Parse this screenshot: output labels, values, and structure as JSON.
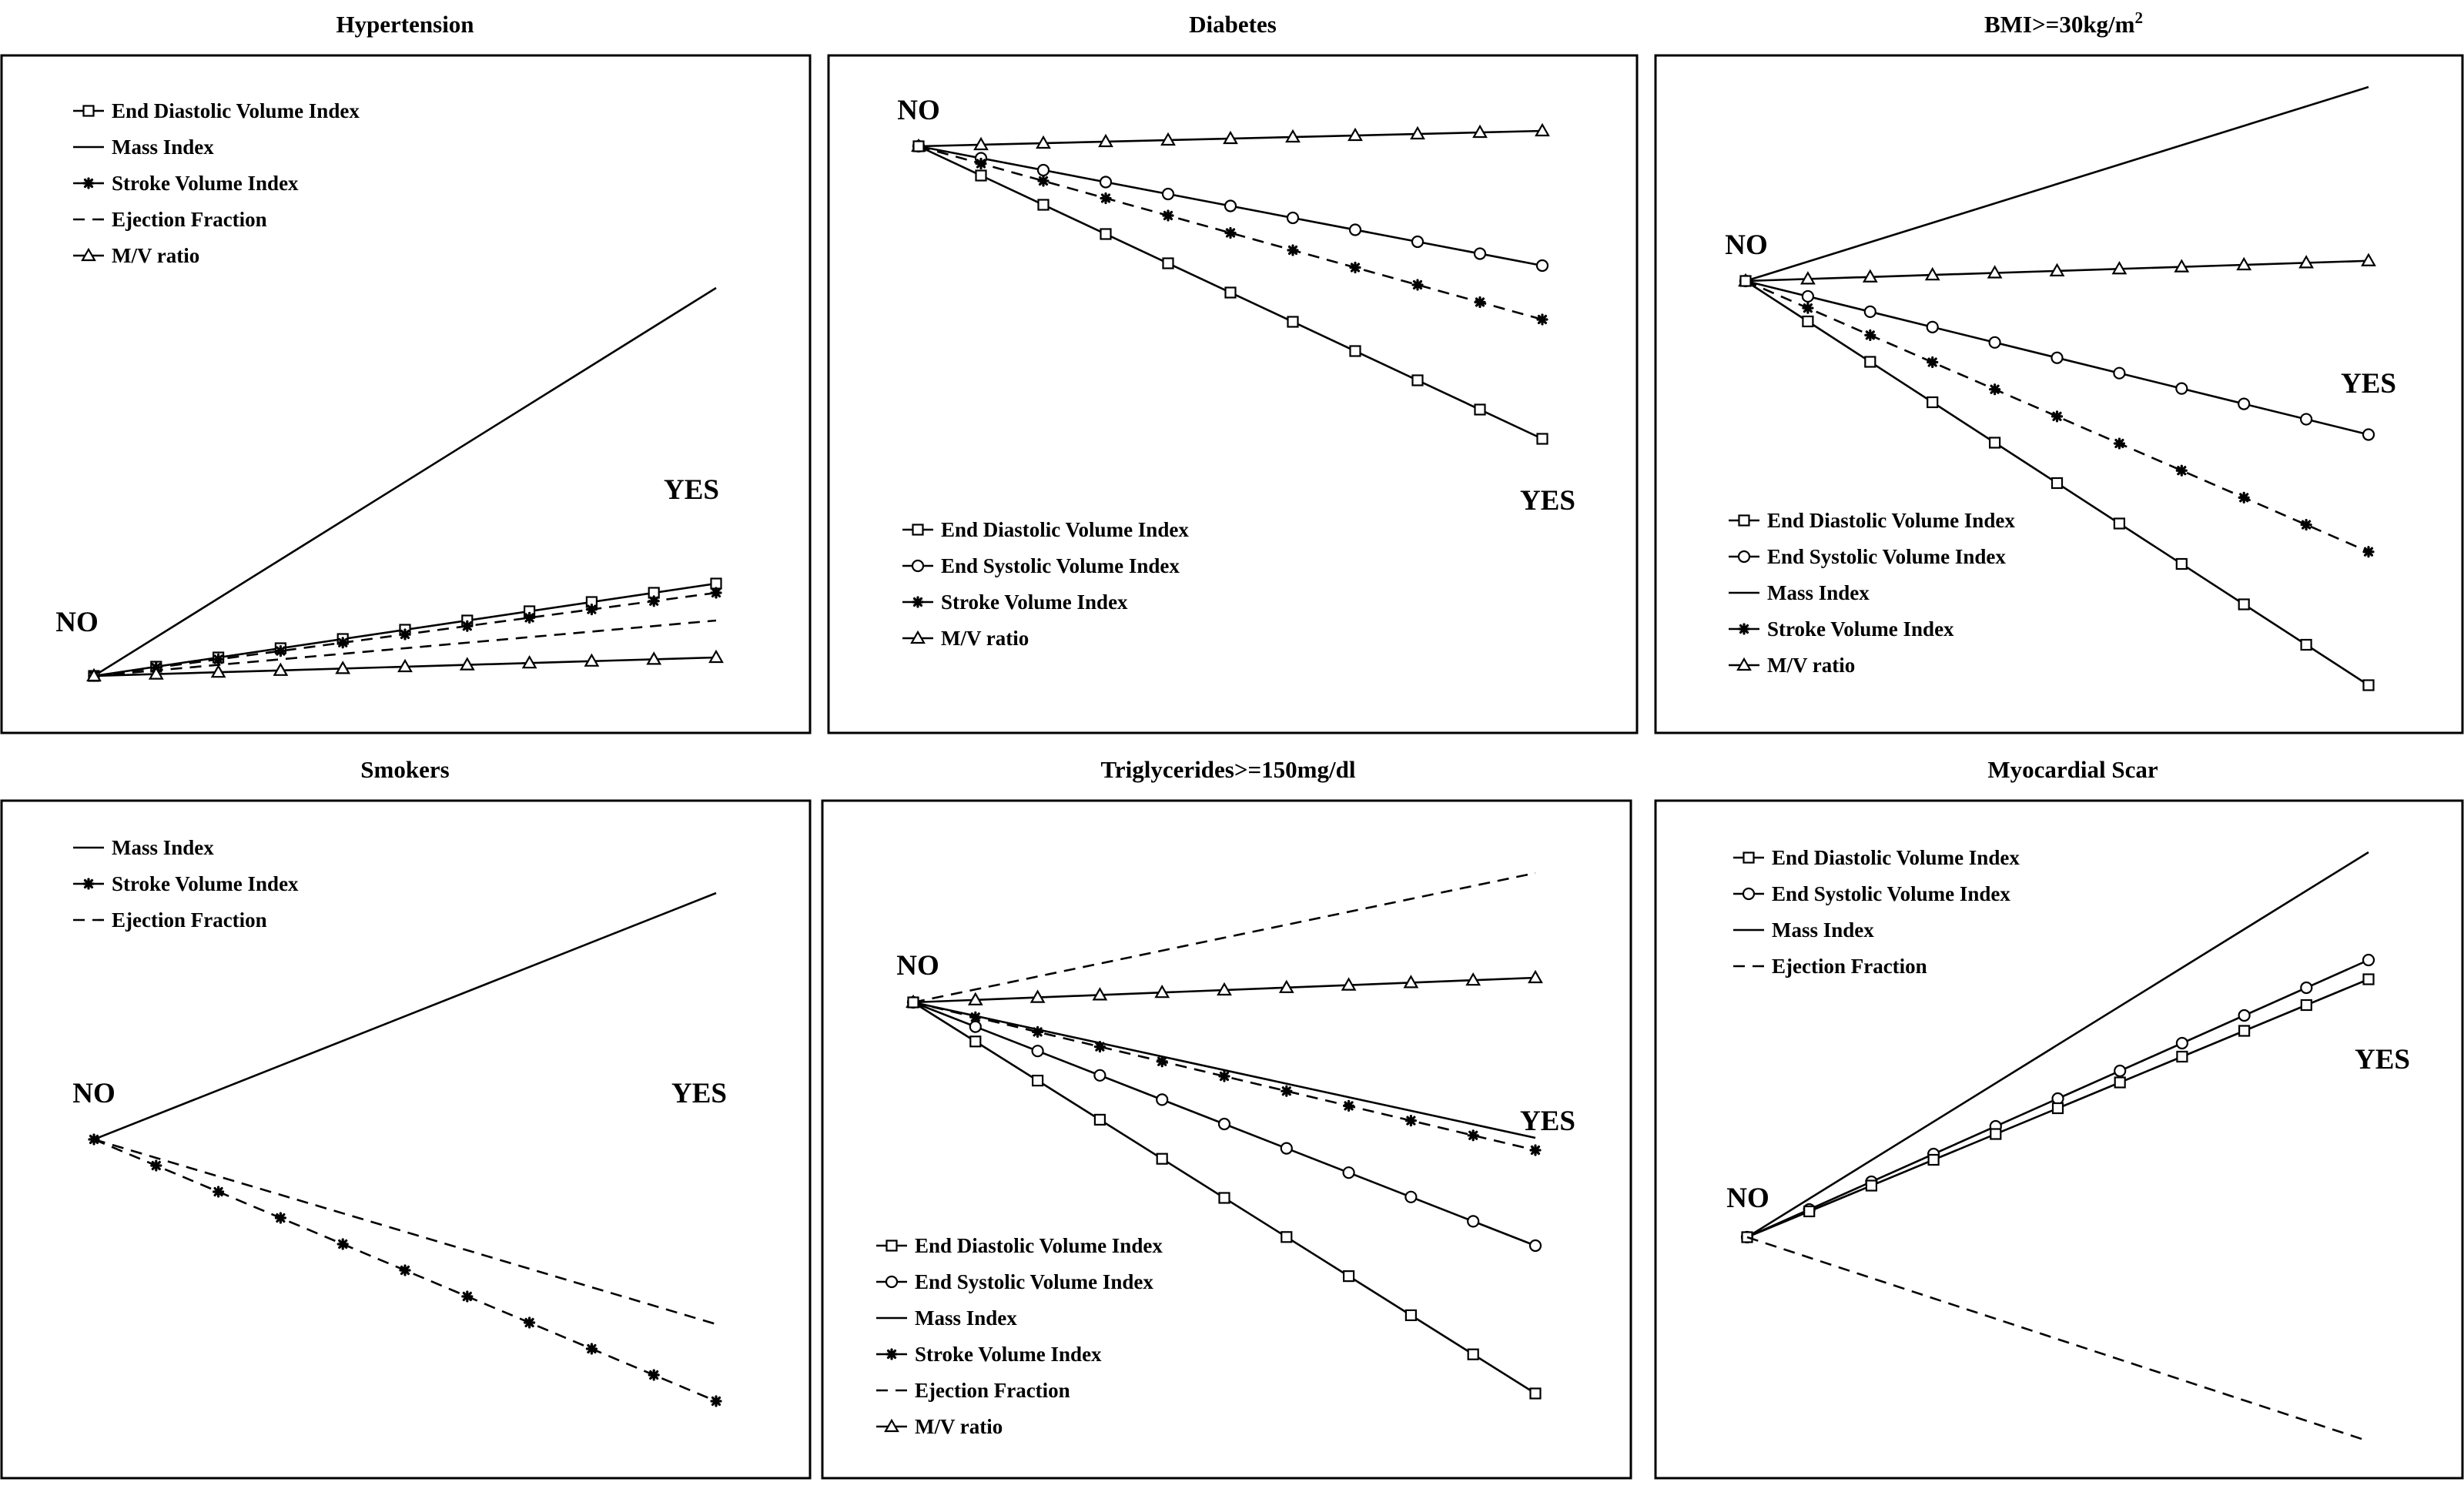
{
  "figure": {
    "start_label": "NO",
    "end_label": "YES",
    "series_styles": {
      "End Diastolic Volume Index": {
        "line": "solid",
        "marker": "square"
      },
      "End Systolic Volume Index": {
        "line": "solid",
        "marker": "circle"
      },
      "Mass Index": {
        "line": "solid",
        "marker": "none"
      },
      "Stroke Volume Index": {
        "line": "dashed",
        "marker": "star"
      },
      "Ejection Fraction": {
        "line": "dashed",
        "marker": "none"
      },
      "M/V ratio": {
        "line": "solid",
        "marker": "triangle"
      }
    }
  },
  "chart_data": [
    {
      "type": "line",
      "title": "Hypertension",
      "categories": [
        "NO",
        "YES"
      ],
      "ylim": [
        -1,
        1
      ],
      "legend": [
        "End Diastolic Volume Index",
        "Mass Index",
        "Stroke Volume Index",
        "Ejection Fraction",
        "M/V ratio"
      ],
      "legend_position": "top-left",
      "series": [
        {
          "name": "Mass Index",
          "values": [
            0,
            0.84
          ]
        },
        {
          "name": "End Diastolic Volume Index",
          "values": [
            0,
            0.2
          ]
        },
        {
          "name": "Stroke Volume Index",
          "values": [
            0,
            0.18
          ]
        },
        {
          "name": "Ejection Fraction",
          "values": [
            0,
            0.12
          ]
        },
        {
          "name": "M/V ratio",
          "values": [
            0,
            0.04
          ]
        }
      ]
    },
    {
      "type": "line",
      "title": "Diabetes",
      "categories": [
        "NO",
        "YES"
      ],
      "ylim": [
        -1,
        1
      ],
      "legend": [
        "End Diastolic Volume Index",
        "End Systolic Volume Index",
        "Stroke Volume Index",
        "M/V ratio"
      ],
      "legend_position": "bottom-left",
      "series": [
        {
          "name": "M/V ratio",
          "values": [
            0,
            0.04
          ]
        },
        {
          "name": "End Systolic Volume Index",
          "values": [
            0,
            -0.31
          ]
        },
        {
          "name": "Stroke Volume Index",
          "values": [
            0,
            -0.45
          ]
        },
        {
          "name": "End Diastolic Volume Index",
          "values": [
            0,
            -0.76
          ]
        }
      ]
    },
    {
      "type": "line",
      "title": "BMI>=30kg/m",
      "title_superscript": "2",
      "categories": [
        "NO",
        "YES"
      ],
      "ylim": [
        -1,
        1
      ],
      "legend": [
        "End Diastolic Volume Index",
        "End Systolic Volume Index",
        "Mass Index",
        "Stroke Volume Index",
        "M/V ratio"
      ],
      "legend_position": "bottom-left",
      "series": [
        {
          "name": "Mass Index",
          "values": [
            0,
            0.48
          ]
        },
        {
          "name": "M/V ratio",
          "values": [
            0,
            0.05
          ]
        },
        {
          "name": "End Systolic Volume Index",
          "values": [
            0,
            -0.38
          ]
        },
        {
          "name": "Stroke Volume Index",
          "values": [
            0,
            -0.67
          ]
        },
        {
          "name": "End Diastolic Volume Index",
          "values": [
            0,
            -1.0
          ]
        }
      ]
    },
    {
      "type": "line",
      "title": "Smokers",
      "categories": [
        "NO",
        "YES"
      ],
      "ylim": [
        -1,
        1
      ],
      "legend": [
        "Mass Index",
        "Stroke Volume Index",
        "Ejection Fraction"
      ],
      "legend_position": "top-left",
      "series": [
        {
          "name": "Mass Index",
          "values": [
            0,
            0.8
          ]
        },
        {
          "name": "Ejection Fraction",
          "values": [
            0,
            -0.6
          ]
        },
        {
          "name": "Stroke Volume Index",
          "values": [
            0,
            -0.85
          ]
        }
      ]
    },
    {
      "type": "line",
      "title": "Triglycerides>=150mg/dl",
      "categories": [
        "NO",
        "YES"
      ],
      "ylim": [
        -1,
        1
      ],
      "legend": [
        "End Diastolic Volume Index",
        "End Systolic Volume Index",
        "Mass Index",
        "Stroke Volume Index",
        "Ejection Fraction",
        "M/V ratio"
      ],
      "legend_position": "bottom-left",
      "series": [
        {
          "name": "Ejection Fraction",
          "values": [
            0,
            0.42
          ]
        },
        {
          "name": "M/V ratio",
          "values": [
            0,
            0.08
          ]
        },
        {
          "name": "Mass Index",
          "values": [
            0,
            -0.44
          ]
        },
        {
          "name": "Stroke Volume Index",
          "values": [
            0,
            -0.48
          ]
        },
        {
          "name": "End Systolic Volume Index",
          "values": [
            0,
            -0.79
          ]
        },
        {
          "name": "End Diastolic Volume Index",
          "values": [
            0,
            -1.27
          ]
        }
      ]
    },
    {
      "type": "line",
      "title": "Myocardial Scar",
      "categories": [
        "NO",
        "YES"
      ],
      "ylim": [
        -1,
        1
      ],
      "legend": [
        "End Diastolic Volume Index",
        "End Systolic Volume Index",
        "Mass Index",
        "Ejection Fraction"
      ],
      "legend_position": "top-left",
      "series": [
        {
          "name": "Mass Index",
          "values": [
            0,
            1.0
          ]
        },
        {
          "name": "End Systolic Volume Index",
          "values": [
            0,
            0.72
          ]
        },
        {
          "name": "End Diastolic Volume Index",
          "values": [
            0,
            0.67
          ]
        },
        {
          "name": "Ejection Fraction",
          "values": [
            0,
            -0.53
          ]
        }
      ]
    }
  ]
}
